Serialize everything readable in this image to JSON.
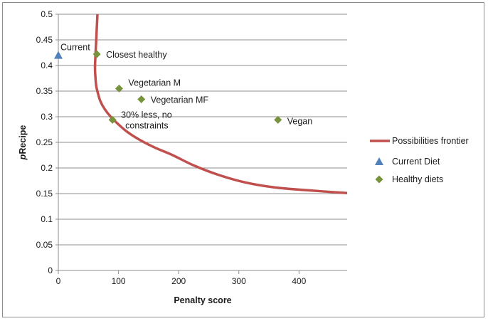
{
  "chart_data": {
    "type": "scatter",
    "title": "",
    "xlabel": "Penalty score",
    "ylabel_prefix": "p",
    "ylabel_rest": "Recipe",
    "xlim": [
      0,
      480
    ],
    "ylim": [
      0,
      0.5
    ],
    "x_ticks": [
      0,
      100,
      200,
      300,
      400
    ],
    "y_ticks": [
      0,
      0.05,
      0.1,
      0.15,
      0.2,
      0.25,
      0.3,
      0.35,
      0.4,
      0.45,
      0.5
    ],
    "x_tick_labels": [
      "0",
      "100",
      "200",
      "300",
      "400"
    ],
    "y_tick_labels": [
      "0",
      "0.05",
      "0.1",
      "0.15",
      "0.2",
      "0.25",
      "0.3",
      "0.35",
      "0.4",
      "0.45",
      "0.5"
    ],
    "grid": "horizontal",
    "legend_position": "right",
    "series": [
      {
        "name": "Possibilities frontier",
        "kind": "line",
        "color": "#c0504d",
        "points": [
          [
            65,
            0.5
          ],
          [
            63,
            0.45
          ],
          [
            61,
            0.4
          ],
          [
            61.5,
            0.38
          ],
          [
            63,
            0.36
          ],
          [
            66,
            0.345
          ],
          [
            70,
            0.33
          ],
          [
            77,
            0.315
          ],
          [
            87,
            0.3
          ],
          [
            100,
            0.285
          ],
          [
            115,
            0.27
          ],
          [
            135,
            0.255
          ],
          [
            160,
            0.24
          ],
          [
            190,
            0.225
          ],
          [
            225,
            0.205
          ],
          [
            265,
            0.187
          ],
          [
            310,
            0.172
          ],
          [
            360,
            0.162
          ],
          [
            420,
            0.156
          ],
          [
            480,
            0.151
          ]
        ]
      },
      {
        "name": "Current Diet",
        "kind": "triangle",
        "color": "#4f81bd",
        "points": [
          [
            0,
            0.42
          ]
        ],
        "labels": [
          "Current"
        ]
      },
      {
        "name": "Healthy diets",
        "kind": "diamond",
        "color": "#77933c",
        "points": [
          [
            64,
            0.422
          ],
          [
            101,
            0.355
          ],
          [
            138,
            0.334
          ],
          [
            90,
            0.294
          ],
          [
            365,
            0.294
          ]
        ],
        "labels": [
          "Closest healthy",
          "Vegetarian M",
          "Vegetarian MF",
          "30% less, no|constraints",
          "Vegan"
        ]
      }
    ]
  }
}
